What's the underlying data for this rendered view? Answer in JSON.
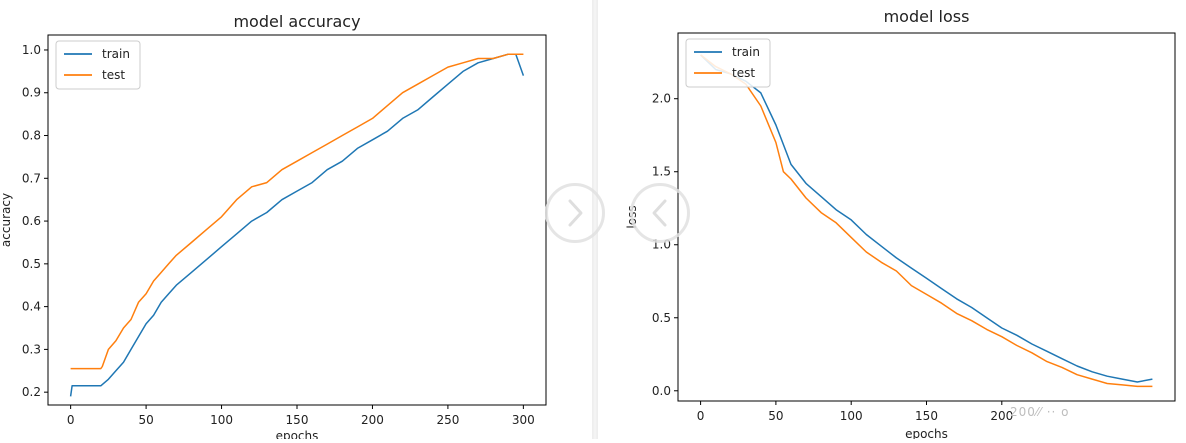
{
  "chart_data": [
    {
      "type": "line",
      "title": "model accuracy",
      "xlabel": "epochs",
      "ylabel": "accuracy",
      "xlim": [
        -15,
        315
      ],
      "ylim": [
        0.17,
        1.035
      ],
      "xticks": [
        0,
        50,
        100,
        150,
        200,
        250,
        300
      ],
      "yticks": [
        0.2,
        0.3,
        0.4,
        0.5,
        0.6,
        0.7,
        0.8,
        0.9,
        1.0
      ],
      "ytick_labels": [
        "0.2",
        "0.3",
        "0.4",
        "0.5",
        "0.6",
        "0.7",
        "0.8",
        "0.9",
        "1.0"
      ],
      "legend_position": "top-left",
      "grid": false,
      "series": [
        {
          "name": "train",
          "color": "#1f77b4",
          "x": [
            0,
            1,
            10,
            20,
            25,
            30,
            35,
            40,
            45,
            50,
            55,
            60,
            65,
            70,
            80,
            90,
            100,
            110,
            120,
            130,
            140,
            150,
            160,
            170,
            180,
            190,
            200,
            210,
            220,
            230,
            240,
            250,
            260,
            270,
            280,
            290,
            295,
            300
          ],
          "y": [
            0.19,
            0.215,
            0.215,
            0.215,
            0.23,
            0.25,
            0.27,
            0.3,
            0.33,
            0.36,
            0.38,
            0.41,
            0.43,
            0.45,
            0.48,
            0.51,
            0.54,
            0.57,
            0.6,
            0.62,
            0.65,
            0.67,
            0.69,
            0.72,
            0.74,
            0.77,
            0.79,
            0.81,
            0.84,
            0.86,
            0.89,
            0.92,
            0.95,
            0.97,
            0.98,
            0.99,
            0.99,
            0.94
          ]
        },
        {
          "name": "test",
          "color": "#ff7f0e",
          "x": [
            0,
            5,
            10,
            15,
            20,
            21,
            25,
            30,
            35,
            40,
            45,
            50,
            55,
            60,
            65,
            70,
            80,
            90,
            100,
            110,
            120,
            130,
            140,
            150,
            160,
            170,
            180,
            190,
            200,
            210,
            220,
            230,
            240,
            250,
            260,
            270,
            280,
            290,
            300
          ],
          "y": [
            0.255,
            0.255,
            0.255,
            0.255,
            0.255,
            0.26,
            0.3,
            0.32,
            0.35,
            0.37,
            0.41,
            0.43,
            0.46,
            0.48,
            0.5,
            0.52,
            0.55,
            0.58,
            0.61,
            0.65,
            0.68,
            0.69,
            0.72,
            0.74,
            0.76,
            0.78,
            0.8,
            0.82,
            0.84,
            0.87,
            0.9,
            0.92,
            0.94,
            0.96,
            0.97,
            0.98,
            0.98,
            0.99,
            0.99
          ]
        }
      ]
    },
    {
      "type": "line",
      "title": "model loss",
      "xlabel": "epochs",
      "ylabel": "loss",
      "xlim": [
        -15,
        315
      ],
      "ylim": [
        -0.07,
        2.45
      ],
      "xticks": [
        0,
        50,
        100,
        150,
        200
      ],
      "yticks": [
        0.0,
        0.5,
        1.0,
        1.5,
        2.0
      ],
      "ytick_labels": [
        "0.0",
        "0.5",
        "1.0",
        "1.5",
        "2.0"
      ],
      "legend_position": "top-left",
      "grid": false,
      "series": [
        {
          "name": "train",
          "color": "#1f77b4",
          "x": [
            0,
            10,
            20,
            30,
            40,
            50,
            60,
            70,
            80,
            90,
            100,
            110,
            120,
            130,
            140,
            150,
            160,
            170,
            180,
            190,
            200,
            210,
            220,
            230,
            240,
            250,
            260,
            270,
            280,
            290,
            300
          ],
          "y": [
            2.3,
            2.2,
            2.17,
            2.12,
            2.04,
            1.82,
            1.55,
            1.42,
            1.33,
            1.24,
            1.17,
            1.07,
            0.99,
            0.91,
            0.84,
            0.77,
            0.7,
            0.63,
            0.57,
            0.5,
            0.43,
            0.38,
            0.32,
            0.27,
            0.22,
            0.17,
            0.13,
            0.1,
            0.08,
            0.06,
            0.08
          ]
        },
        {
          "name": "test",
          "color": "#ff7f0e",
          "x": [
            0,
            10,
            20,
            30,
            40,
            50,
            55,
            60,
            70,
            80,
            90,
            100,
            110,
            120,
            130,
            140,
            150,
            160,
            170,
            180,
            190,
            200,
            210,
            220,
            230,
            240,
            250,
            260,
            270,
            280,
            290,
            300
          ],
          "y": [
            2.3,
            2.22,
            2.17,
            2.1,
            1.95,
            1.7,
            1.5,
            1.45,
            1.32,
            1.22,
            1.15,
            1.05,
            0.95,
            0.88,
            0.82,
            0.72,
            0.66,
            0.6,
            0.53,
            0.48,
            0.42,
            0.37,
            0.31,
            0.26,
            0.2,
            0.16,
            0.11,
            0.08,
            0.05,
            0.04,
            0.03,
            0.03
          ]
        }
      ]
    }
  ],
  "navigation": {
    "next_icon": "chevron-right-icon",
    "prev_icon": "chevron-left-icon"
  },
  "watermark_text": "200⁄⁄  ·· o"
}
